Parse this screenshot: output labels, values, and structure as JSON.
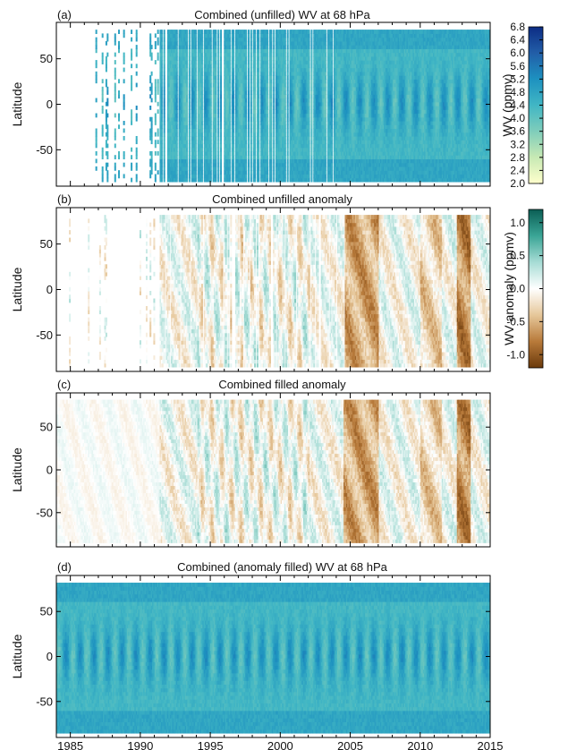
{
  "colors": {
    "wv_scale": [
      "#ffffcc",
      "#c7e9b4",
      "#7fcdbb",
      "#41b6c4",
      "#1d91c0",
      "#225ea8",
      "#0c2c84"
    ],
    "anomaly_scale": [
      "#6b3a0c",
      "#b87a3a",
      "#e6c79a",
      "#ffffff",
      "#a7dcd5",
      "#3aa596",
      "#0b5e55"
    ],
    "frame": "#000000"
  },
  "chart_data": [
    {
      "id": "a",
      "panel_label": "(a)",
      "type": "heatmap",
      "title": "Combined (unfilled) WV at 68 hPa",
      "xlabel": "",
      "ylabel": "Latitude",
      "xlim": [
        1984,
        2015
      ],
      "ylim": [
        -90,
        90
      ],
      "yticks": [
        -50,
        0,
        50
      ],
      "colorbar": {
        "label": "WV (ppmv)",
        "ticks": [
          "2.0",
          "2.4",
          "2.8",
          "3.2",
          "3.6",
          "4.0",
          "4.4",
          "4.8",
          "5.2",
          "5.6",
          "6.0",
          "6.4",
          "6.8"
        ],
        "range": [
          2.0,
          6.8
        ]
      },
      "coverage": [
        {
          "x0": 1986.0,
          "x1": 1991.3,
          "note": "sparse"
        },
        {
          "x0": 1991.3,
          "x1": 2004.6,
          "note": "dense"
        },
        {
          "x0": 2004.6,
          "x1": 2015.0,
          "note": "full"
        }
      ]
    },
    {
      "id": "b",
      "panel_label": "(b)",
      "type": "heatmap",
      "title": "Combined unfilled anomaly",
      "xlabel": "",
      "ylabel": "Latitude",
      "xlim": [
        1984,
        2015
      ],
      "ylim": [
        -90,
        90
      ],
      "yticks": [
        -50,
        0,
        50
      ],
      "colorbar": {
        "label": "WV anomaly (ppmv)",
        "ticks": [
          "-1.0",
          "-0.5",
          "0.0",
          "0.5",
          "1.0"
        ],
        "range": [
          -1.2,
          1.2
        ]
      }
    },
    {
      "id": "c",
      "panel_label": "(c)",
      "type": "heatmap",
      "title": "Combined filled anomaly",
      "xlabel": "",
      "ylabel": "Latitude",
      "xlim": [
        1984,
        2015
      ],
      "ylim": [
        -90,
        90
      ],
      "yticks": [
        -50,
        0,
        50
      ]
    },
    {
      "id": "d",
      "panel_label": "(d)",
      "type": "heatmap",
      "title": "Combined (anomaly filled) WV at 68 hPa",
      "xlabel": "",
      "ylabel": "Latitude",
      "xlim": [
        1984,
        2015
      ],
      "ylim": [
        -90,
        90
      ],
      "yticks": [
        -50,
        0,
        50
      ],
      "xticks": [
        "1985",
        "1990",
        "1995",
        "2000",
        "2005",
        "2010",
        "2015"
      ]
    }
  ]
}
